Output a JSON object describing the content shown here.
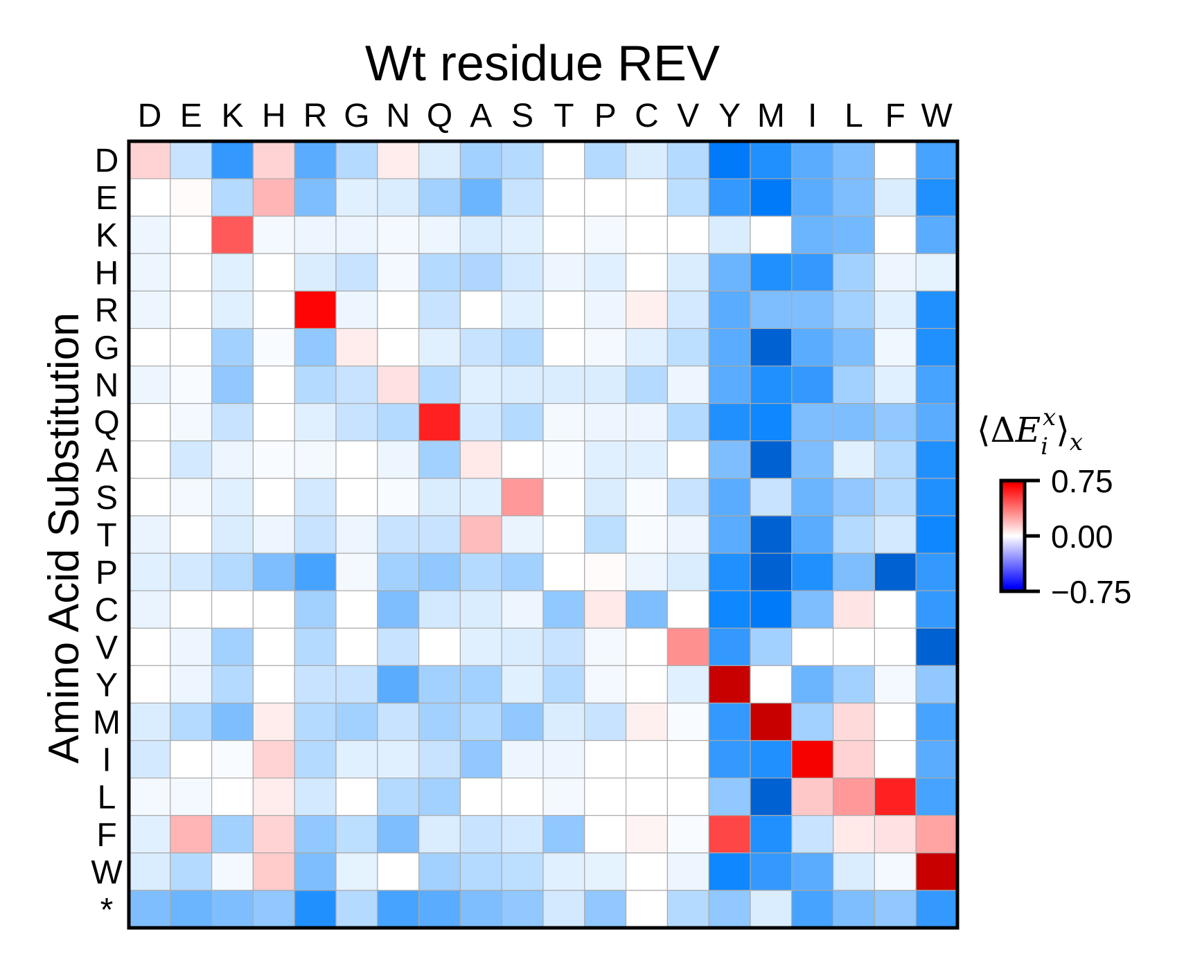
{
  "chart_data": {
    "type": "heatmap",
    "title": "Wt residue REV",
    "xlabel": "",
    "ylabel": "Amino Acid Substitution",
    "x_categories": [
      "D",
      "E",
      "K",
      "H",
      "R",
      "G",
      "N",
      "Q",
      "A",
      "S",
      "T",
      "P",
      "C",
      "V",
      "Y",
      "M",
      "I",
      "L",
      "F",
      "W"
    ],
    "y_categories": [
      "D",
      "E",
      "K",
      "H",
      "R",
      "G",
      "N",
      "Q",
      "A",
      "S",
      "T",
      "P",
      "C",
      "V",
      "Y",
      "M",
      "I",
      "L",
      "F",
      "W",
      "*"
    ],
    "colormap": "bwr",
    "colorbar": {
      "label": "⟨ΔE_i^x⟩_x",
      "range": [
        -0.75,
        0.75
      ],
      "ticks": [
        0.75,
        0.0,
        -0.75
      ],
      "tick_labels": [
        "0.75",
        "0.00",
        "−0.75"
      ]
    },
    "values": [
      [
        0.12,
        -0.15,
        -0.55,
        0.12,
        -0.45,
        -0.2,
        0.05,
        -0.1,
        -0.25,
        -0.2,
        0.0,
        -0.2,
        -0.1,
        -0.2,
        -0.7,
        -0.6,
        -0.45,
        -0.35,
        0.0,
        -0.5
      ],
      [
        0.0,
        0.01,
        -0.2,
        0.2,
        -0.35,
        -0.08,
        -0.1,
        -0.25,
        -0.4,
        -0.15,
        0.0,
        0.0,
        0.0,
        -0.18,
        -0.55,
        -0.7,
        -0.45,
        -0.35,
        -0.1,
        -0.6
      ],
      [
        -0.05,
        0.0,
        0.45,
        -0.03,
        -0.05,
        -0.05,
        -0.03,
        -0.05,
        -0.1,
        -0.08,
        0.0,
        -0.03,
        0.0,
        0.0,
        -0.1,
        0.0,
        -0.4,
        -0.38,
        0.0,
        -0.45
      ],
      [
        -0.05,
        0.0,
        -0.08,
        0.0,
        -0.1,
        -0.15,
        -0.03,
        -0.2,
        -0.22,
        -0.12,
        -0.05,
        -0.08,
        0.0,
        -0.1,
        -0.4,
        -0.6,
        -0.55,
        -0.25,
        -0.05,
        -0.07
      ],
      [
        -0.05,
        0.0,
        -0.08,
        0.0,
        0.68,
        -0.05,
        0.0,
        -0.15,
        0.0,
        -0.08,
        0.0,
        -0.05,
        0.04,
        -0.12,
        -0.45,
        -0.35,
        -0.35,
        -0.25,
        -0.08,
        -0.6
      ],
      [
        0.0,
        0.0,
        -0.25,
        -0.02,
        -0.3,
        0.05,
        0.0,
        -0.08,
        -0.15,
        -0.2,
        0.0,
        -0.03,
        -0.08,
        -0.18,
        -0.45,
        -0.75,
        -0.45,
        -0.35,
        -0.04,
        -0.6
      ],
      [
        -0.05,
        -0.02,
        -0.3,
        0.0,
        -0.2,
        -0.15,
        0.08,
        -0.2,
        -0.08,
        -0.1,
        -0.1,
        -0.1,
        -0.2,
        -0.05,
        -0.45,
        -0.6,
        -0.55,
        -0.25,
        -0.08,
        -0.5
      ],
      [
        0.0,
        -0.03,
        -0.15,
        0.0,
        -0.08,
        -0.15,
        -0.2,
        0.6,
        -0.12,
        -0.2,
        -0.03,
        -0.05,
        -0.05,
        -0.2,
        -0.6,
        -0.65,
        -0.35,
        -0.35,
        -0.3,
        -0.45
      ],
      [
        0.0,
        -0.12,
        -0.05,
        -0.02,
        -0.03,
        0.0,
        -0.05,
        -0.25,
        0.06,
        0.0,
        -0.02,
        -0.08,
        -0.08,
        0.0,
        -0.35,
        -0.8,
        -0.35,
        -0.08,
        -0.2,
        -0.6
      ],
      [
        0.0,
        -0.03,
        -0.08,
        0.0,
        -0.12,
        0.0,
        -0.02,
        -0.1,
        -0.08,
        0.28,
        0.0,
        -0.1,
        -0.02,
        -0.15,
        -0.45,
        -0.15,
        -0.4,
        -0.3,
        -0.2,
        -0.6
      ],
      [
        -0.06,
        0.0,
        -0.1,
        -0.05,
        -0.15,
        -0.05,
        -0.15,
        -0.15,
        0.18,
        -0.06,
        0.0,
        -0.18,
        -0.02,
        -0.05,
        -0.45,
        -0.8,
        -0.45,
        -0.2,
        -0.12,
        -0.65
      ],
      [
        -0.08,
        -0.12,
        -0.2,
        -0.35,
        -0.5,
        -0.03,
        -0.25,
        -0.3,
        -0.2,
        -0.25,
        0.0,
        0.01,
        -0.05,
        -0.1,
        -0.6,
        -0.8,
        -0.6,
        -0.35,
        -0.75,
        -0.55
      ],
      [
        -0.06,
        0.0,
        0.0,
        0.0,
        -0.25,
        0.0,
        -0.35,
        -0.12,
        -0.1,
        -0.05,
        -0.3,
        0.06,
        -0.35,
        0.0,
        -0.65,
        -0.7,
        -0.35,
        0.07,
        0.0,
        -0.55
      ],
      [
        0.0,
        -0.05,
        -0.25,
        0.0,
        -0.2,
        0.0,
        -0.15,
        0.0,
        -0.08,
        -0.1,
        -0.15,
        -0.03,
        0.0,
        0.3,
        -0.55,
        -0.25,
        0.0,
        0.0,
        0.0,
        -0.85
      ],
      [
        0.0,
        -0.05,
        -0.2,
        0.0,
        -0.15,
        -0.15,
        -0.45,
        -0.25,
        -0.25,
        -0.08,
        -0.2,
        -0.03,
        0.0,
        -0.08,
        0.75,
        0.0,
        -0.4,
        -0.25,
        -0.03,
        -0.3
      ],
      [
        -0.1,
        -0.2,
        -0.35,
        0.05,
        -0.2,
        -0.25,
        -0.15,
        -0.25,
        -0.2,
        -0.3,
        -0.1,
        -0.15,
        0.04,
        -0.02,
        -0.55,
        0.75,
        -0.25,
        0.1,
        0.0,
        -0.5
      ],
      [
        -0.12,
        0.0,
        -0.02,
        0.12,
        -0.2,
        -0.08,
        -0.08,
        -0.15,
        -0.3,
        -0.05,
        -0.05,
        0.0,
        0.0,
        0.0,
        -0.55,
        -0.6,
        0.7,
        0.12,
        0.0,
        -0.45
      ],
      [
        -0.03,
        -0.03,
        0.0,
        0.05,
        -0.12,
        0.0,
        -0.2,
        -0.25,
        0.0,
        0.0,
        -0.03,
        0.0,
        0.0,
        0.0,
        -0.3,
        -0.85,
        0.15,
        0.28,
        0.6,
        -0.5
      ],
      [
        -0.08,
        0.2,
        -0.25,
        0.12,
        -0.3,
        -0.18,
        -0.35,
        -0.1,
        -0.15,
        -0.12,
        -0.3,
        0.0,
        0.03,
        -0.02,
        0.5,
        -0.6,
        -0.15,
        0.06,
        0.08,
        0.25
      ],
      [
        -0.1,
        -0.2,
        -0.03,
        0.14,
        -0.35,
        -0.07,
        0.0,
        -0.25,
        -0.2,
        -0.18,
        -0.08,
        -0.07,
        0.0,
        -0.05,
        -0.65,
        -0.55,
        -0.45,
        -0.1,
        -0.03,
        0.75
      ],
      [
        -0.35,
        -0.4,
        -0.35,
        -0.3,
        -0.6,
        -0.2,
        -0.5,
        -0.45,
        -0.35,
        -0.3,
        -0.12,
        -0.3,
        0.0,
        -0.2,
        -0.3,
        -0.1,
        -0.5,
        -0.35,
        -0.3,
        -0.55
      ]
    ]
  }
}
